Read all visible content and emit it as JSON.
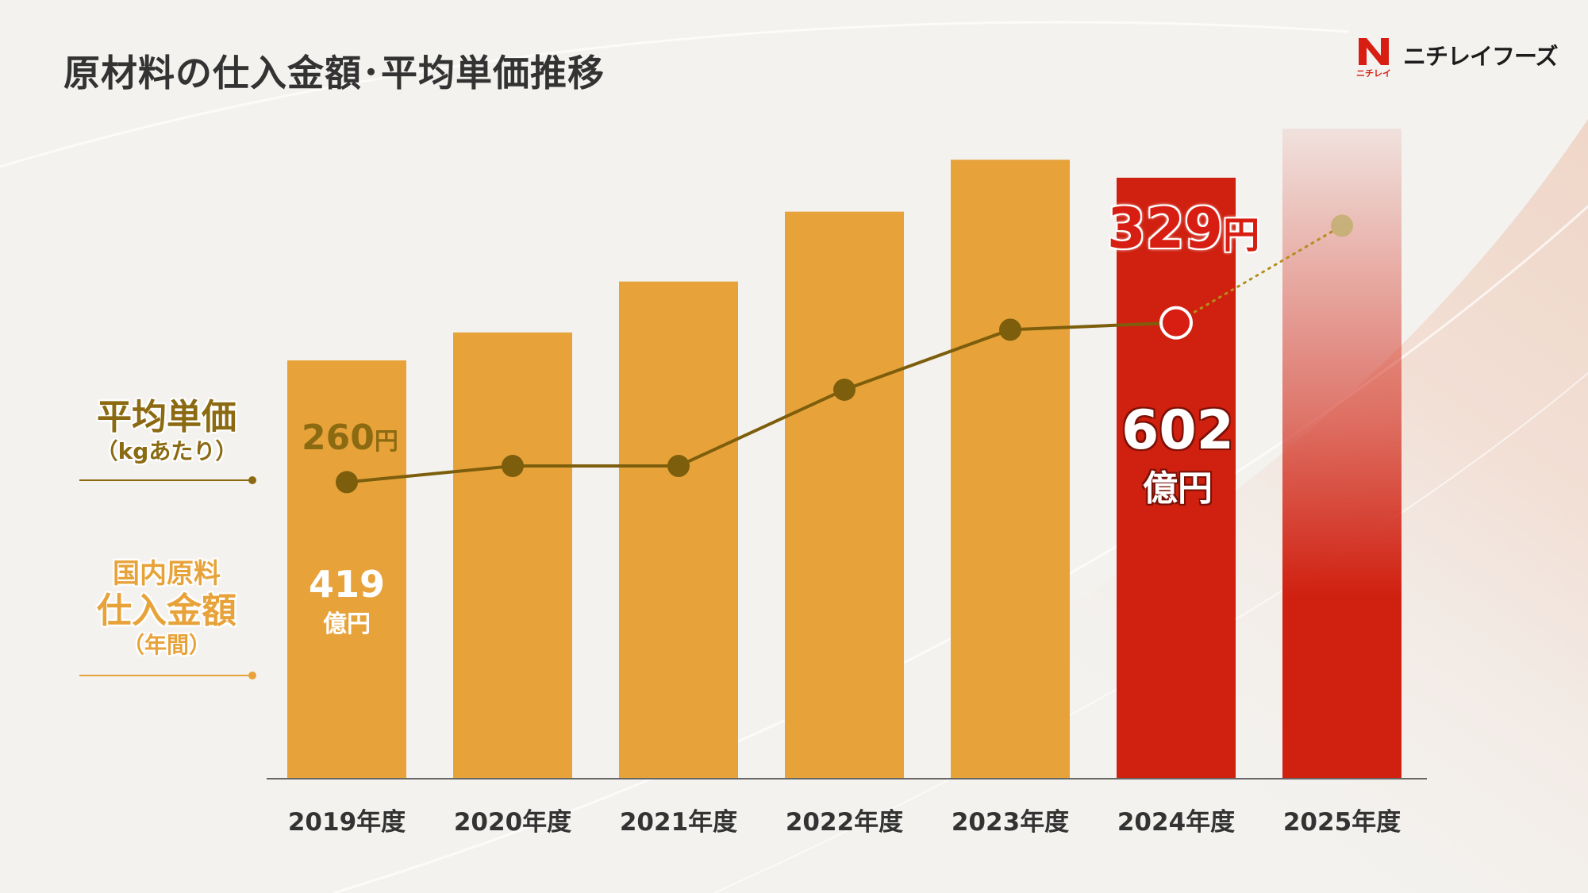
{
  "page": {
    "title": "原材料の仕入金額･平均単価推移",
    "logo_text": "ニチレイフーズ",
    "logo_sub": "ニチレイ"
  },
  "labels": {
    "price_line1": "平均単価",
    "price_line2": "（kgあたり）",
    "amount_line1": "国内原料",
    "amount_line2": "仕入金額",
    "amount_line3": "（年間）"
  },
  "colors": {
    "bar": "#e7a33a",
    "bar_highlight": "#d02010",
    "line": "#7d5e0c",
    "forecast_point": "#c7b07a",
    "highlight_point": "#d81e12",
    "text_dark": "#333333"
  },
  "chart_data": {
    "type": "bar+line",
    "categories": [
      "2019年度",
      "2020年度",
      "2021年度",
      "2022年度",
      "2023年度",
      "2024年度",
      "2025年度"
    ],
    "series": [
      {
        "name": "国内原料仕入金額（年間）",
        "unit": "億円",
        "type": "bar",
        "values": [
          419,
          447,
          498,
          568,
          620,
          602,
          651
        ]
      },
      {
        "name": "平均単価（kgあたり）",
        "unit": "円",
        "type": "line",
        "values": [
          260,
          267,
          267,
          300,
          326,
          329,
          371
        ]
      }
    ],
    "bar_ylim": [
      0,
      780
    ],
    "line_ylim": [
      100,
      400
    ],
    "forecast_indices": [
      6
    ],
    "highlight_index": 5,
    "annotations": {
      "first_bar_value": "419",
      "first_bar_unit": "億円",
      "highlight_bar_value": "602",
      "highlight_bar_unit": "億円",
      "first_point_value": "260",
      "first_point_unit": "円",
      "highlight_point_value": "329",
      "highlight_point_unit": "円"
    },
    "grid": false,
    "legend": "left"
  }
}
